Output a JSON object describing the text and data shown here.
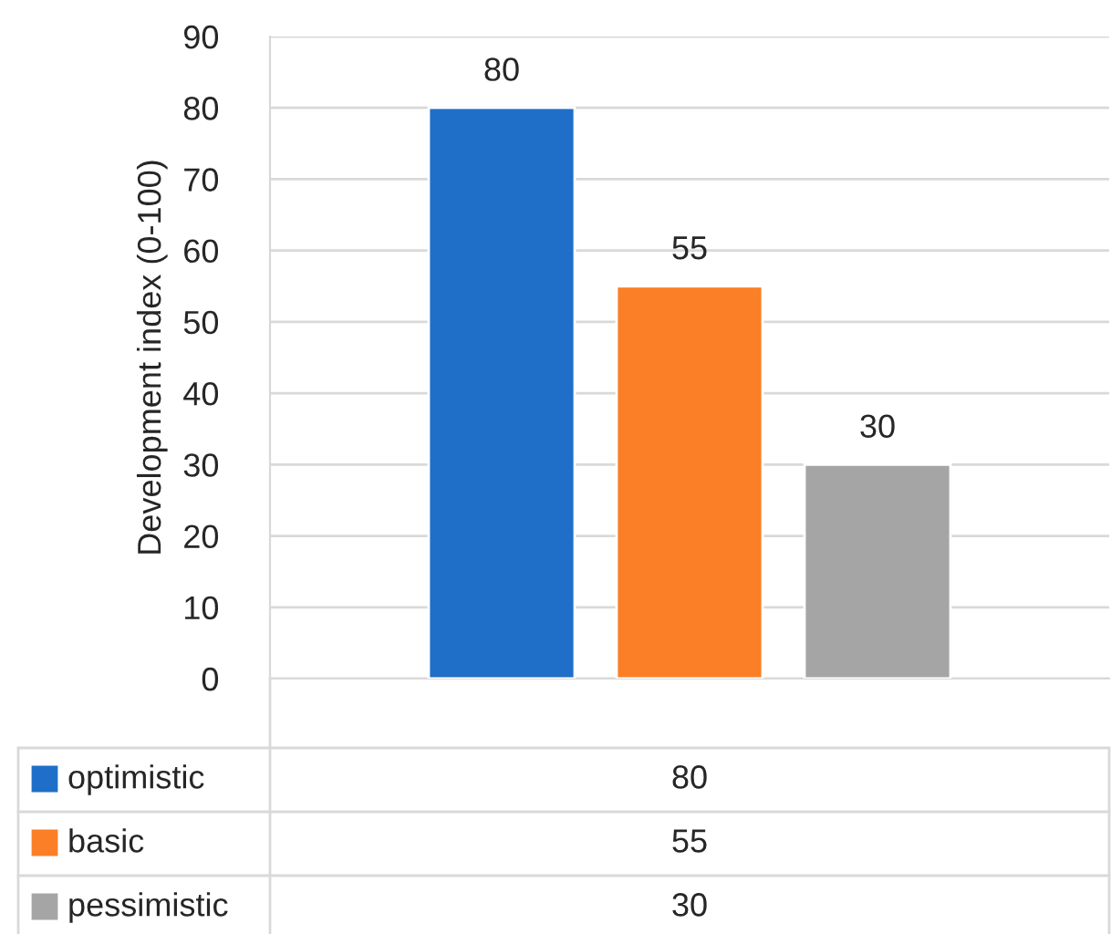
{
  "chart_data": {
    "type": "bar",
    "ylabel": "Development index (0-100)",
    "categories": [
      null
    ],
    "series": [
      {
        "name": "optimistic",
        "color": "#1f6fc9",
        "values": [
          80
        ],
        "value_labels": [
          "80"
        ]
      },
      {
        "name": "basic",
        "color": "#fa7f26",
        "values": [
          55
        ],
        "value_labels": [
          "55"
        ]
      },
      {
        "name": "pessimistic",
        "color": "#a5a5a5",
        "values": [
          30
        ],
        "value_labels": [
          "30"
        ]
      }
    ],
    "ylim": [
      0,
      90
    ],
    "yticks": [
      0,
      10,
      20,
      30,
      40,
      50,
      60,
      70,
      80,
      90
    ],
    "grid": "y",
    "legend": "bottom left",
    "annotations": [
      "80",
      "55",
      "30"
    ]
  }
}
